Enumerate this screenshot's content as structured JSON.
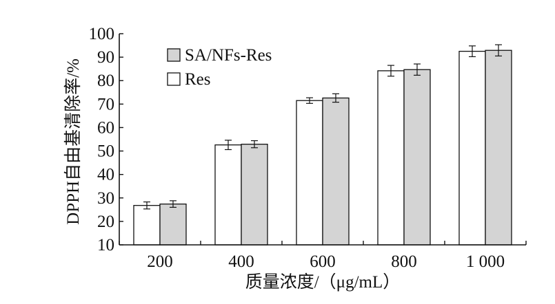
{
  "chart_data": {
    "type": "bar",
    "categories": [
      "200",
      "400",
      "600",
      "800",
      "1 000"
    ],
    "series": [
      {
        "name": "Res",
        "values": [
          26.8,
          52.6,
          71.5,
          84.2,
          92.5
        ],
        "errors": [
          1.5,
          2.0,
          1.2,
          2.3,
          2.3
        ],
        "color": "#ffffff"
      },
      {
        "name": "SA/NFs-Res",
        "values": [
          27.4,
          52.9,
          72.6,
          84.7,
          92.9
        ],
        "errors": [
          1.4,
          1.5,
          1.8,
          2.4,
          2.4
        ],
        "color": "#d4d4d4"
      }
    ],
    "xlabel": "质量浓度/（μg/mL）",
    "ylabel": "DPPH自由基清除率/%",
    "ylim": [
      10,
      100
    ],
    "yticks": [
      10,
      20,
      30,
      40,
      50,
      60,
      70,
      80,
      90,
      100
    ],
    "grid": false,
    "legend_position": "top-left"
  }
}
